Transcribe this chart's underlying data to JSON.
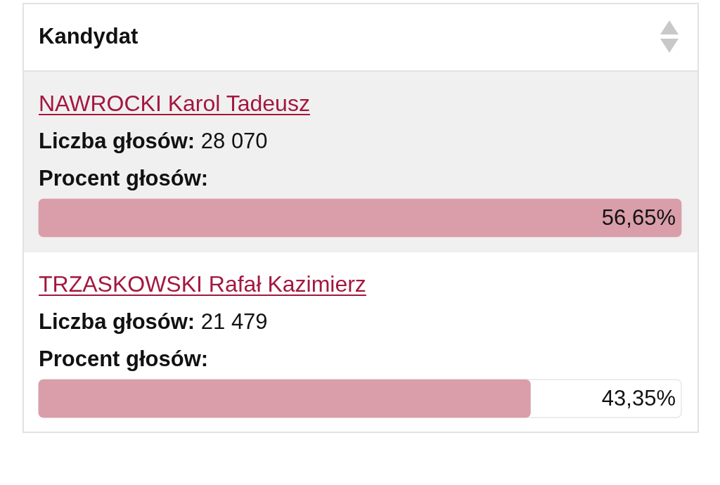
{
  "chart_data": {
    "type": "bar",
    "orientation": "horizontal",
    "ylabel": "Kandydat",
    "categories": [
      "NAWROCKI Karol Tadeusz",
      "TRZASKOWSKI Rafał Kazimierz"
    ],
    "values": [
      56.65,
      43.35
    ],
    "color": "#d99ea9",
    "value_labels": [
      "56,65%",
      "43,35%"
    ],
    "annotations": [
      "Liczba głosów: 28 070",
      "Procent głosów:",
      "Liczba głosów: 21 479",
      "Procent głosów:"
    ]
  }
}
